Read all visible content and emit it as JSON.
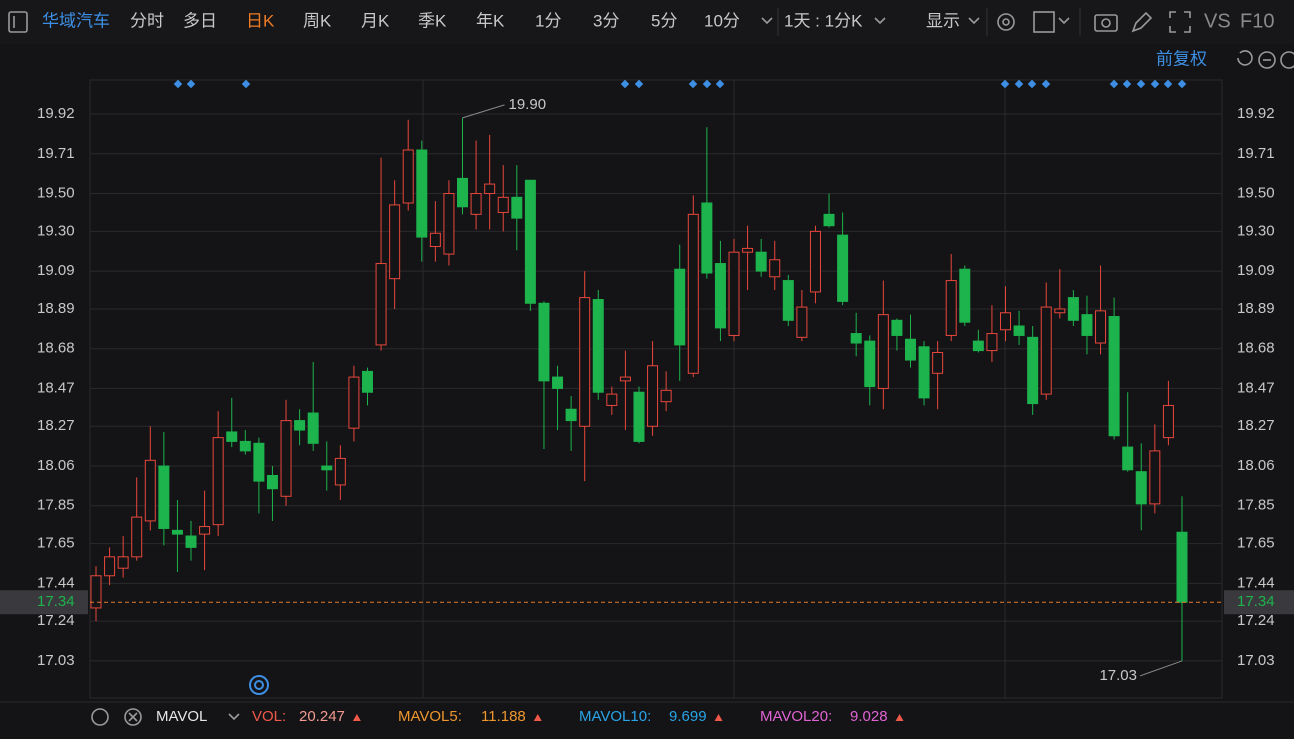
{
  "toolbar": {
    "stock_name": "华域汽车",
    "periods": [
      "分时",
      "多日",
      "日K",
      "周K",
      "月K",
      "季K",
      "年K",
      "1分",
      "3分",
      "5分",
      "10分"
    ],
    "active_index": 2,
    "interval": "1天 : 1分K",
    "display": "显示",
    "vs": "VS",
    "f10": "F10",
    "adjust": "前复权"
  },
  "chart_data": {
    "type": "candlestick",
    "up_color": "#e8473c",
    "down_color": "#1db34d",
    "open": [
      17.31,
      17.48,
      17.52,
      17.58,
      17.77,
      18.06,
      17.72,
      17.69,
      17.7,
      17.75,
      18.24,
      18.19,
      18.18,
      18.01,
      17.9,
      18.3,
      18.34,
      18.06,
      17.96,
      18.26,
      18.56,
      18.7,
      19.05,
      19.45,
      19.73,
      19.22,
      19.18,
      19.58,
      19.39,
      19.5,
      19.4,
      19.48,
      19.57,
      18.92,
      18.53,
      18.36,
      18.27,
      18.94,
      18.38,
      18.51,
      18.45,
      18.27,
      18.4,
      19.1,
      18.55,
      19.45,
      19.13,
      18.75,
      19.19,
      19.19,
      19.06,
      19.04,
      18.74,
      18.98,
      19.39,
      19.28,
      18.76,
      18.72,
      18.47,
      18.83,
      18.73,
      18.69,
      18.55,
      18.75,
      19.1,
      18.72,
      18.67,
      18.78,
      18.8,
      18.74,
      18.44,
      18.87,
      18.95,
      18.86,
      18.71,
      18.85,
      18.16,
      18.03,
      17.86,
      18.21,
      17.71
    ],
    "high": [
      17.53,
      17.63,
      17.69,
      18.0,
      18.27,
      18.24,
      17.88,
      17.77,
      17.93,
      18.35,
      18.42,
      18.25,
      18.21,
      18.06,
      18.41,
      18.36,
      18.61,
      18.19,
      18.17,
      18.59,
      18.58,
      19.69,
      19.57,
      19.89,
      19.78,
      19.46,
      19.57,
      19.9,
      19.78,
      19.81,
      19.65,
      19.65,
      19.57,
      18.93,
      18.59,
      18.43,
      19.09,
      18.99,
      18.48,
      18.67,
      18.48,
      18.72,
      18.56,
      19.23,
      19.49,
      19.85,
      19.25,
      19.26,
      19.33,
      19.26,
      19.25,
      19.07,
      18.99,
      19.33,
      19.5,
      19.4,
      18.87,
      18.75,
      19.04,
      18.84,
      18.86,
      18.72,
      18.72,
      19.18,
      19.12,
      18.78,
      18.91,
      19.01,
      18.88,
      18.8,
      19.03,
      19.1,
      18.99,
      18.96,
      19.12,
      18.95,
      18.45,
      18.18,
      18.28,
      18.51,
      17.9
    ],
    "low": [
      17.24,
      17.43,
      17.47,
      17.56,
      17.72,
      17.64,
      17.5,
      17.56,
      17.51,
      17.69,
      18.16,
      18.12,
      17.81,
      17.77,
      17.85,
      18.17,
      18.14,
      17.93,
      17.88,
      18.19,
      18.38,
      18.67,
      18.89,
      19.41,
      19.14,
      19.14,
      19.12,
      19.39,
      19.31,
      19.31,
      19.3,
      19.2,
      18.88,
      18.15,
      18.25,
      18.14,
      17.98,
      18.41,
      18.33,
      18.25,
      18.18,
      18.22,
      18.35,
      18.51,
      18.53,
      19.05,
      18.72,
      18.72,
      18.99,
      19.06,
      18.99,
      18.8,
      18.72,
      18.92,
      19.32,
      18.91,
      18.64,
      18.38,
      18.36,
      18.67,
      18.58,
      18.38,
      18.36,
      18.72,
      18.8,
      18.66,
      18.61,
      18.72,
      18.7,
      18.33,
      18.41,
      18.84,
      18.8,
      18.65,
      18.65,
      18.2,
      18.03,
      17.72,
      17.81,
      18.17,
      17.03
    ],
    "close": [
      17.48,
      17.58,
      17.58,
      17.79,
      18.09,
      17.73,
      17.7,
      17.63,
      17.74,
      18.21,
      18.19,
      18.14,
      17.98,
      17.94,
      18.3,
      18.25,
      18.18,
      18.04,
      18.1,
      18.53,
      18.45,
      19.13,
      19.44,
      19.73,
      19.27,
      19.29,
      19.5,
      19.43,
      19.5,
      19.55,
      19.48,
      19.37,
      18.92,
      18.51,
      18.47,
      18.3,
      18.95,
      18.45,
      18.44,
      18.53,
      18.19,
      18.59,
      18.46,
      18.7,
      19.39,
      19.08,
      18.79,
      19.19,
      19.21,
      19.09,
      19.15,
      18.83,
      18.9,
      19.3,
      19.33,
      18.93,
      18.71,
      18.48,
      18.86,
      18.75,
      18.62,
      18.42,
      18.66,
      19.04,
      18.82,
      18.67,
      18.76,
      18.87,
      18.75,
      18.39,
      18.9,
      18.89,
      18.83,
      18.75,
      18.88,
      18.22,
      18.04,
      17.86,
      18.14,
      18.38,
      17.34
    ],
    "ylim": [
      16.834,
      20.1
    ],
    "yticks": [
      19.92,
      19.71,
      {
        "value": 19.5,
        "label": "19.50"
      },
      {
        "value": 19.3,
        "label": "19.30"
      },
      19.09,
      18.89,
      18.68,
      18.47,
      18.27,
      18.06,
      17.85,
      17.65,
      17.44,
      17.24,
      17.03
    ],
    "grid": true,
    "last_price": 17.34,
    "last_price_color": "#e07a2e",
    "annotations": [
      {
        "value": 19.9,
        "label": "19.90"
      },
      17.03
    ]
  },
  "indicator": {
    "name": "MAVOL",
    "items": [
      {
        "label": "VOL:",
        "value": 20.247,
        "color": "#f0584a"
      },
      {
        "label": "MAVOL5:",
        "value": 11.188,
        "color": "#f0962e"
      },
      {
        "label": "MAVOL10:",
        "value": 9.699,
        "color": "#2aa4e8"
      },
      {
        "label": "MAVOL20:",
        "value": 9.028,
        "color": "#e063d4"
      }
    ]
  }
}
